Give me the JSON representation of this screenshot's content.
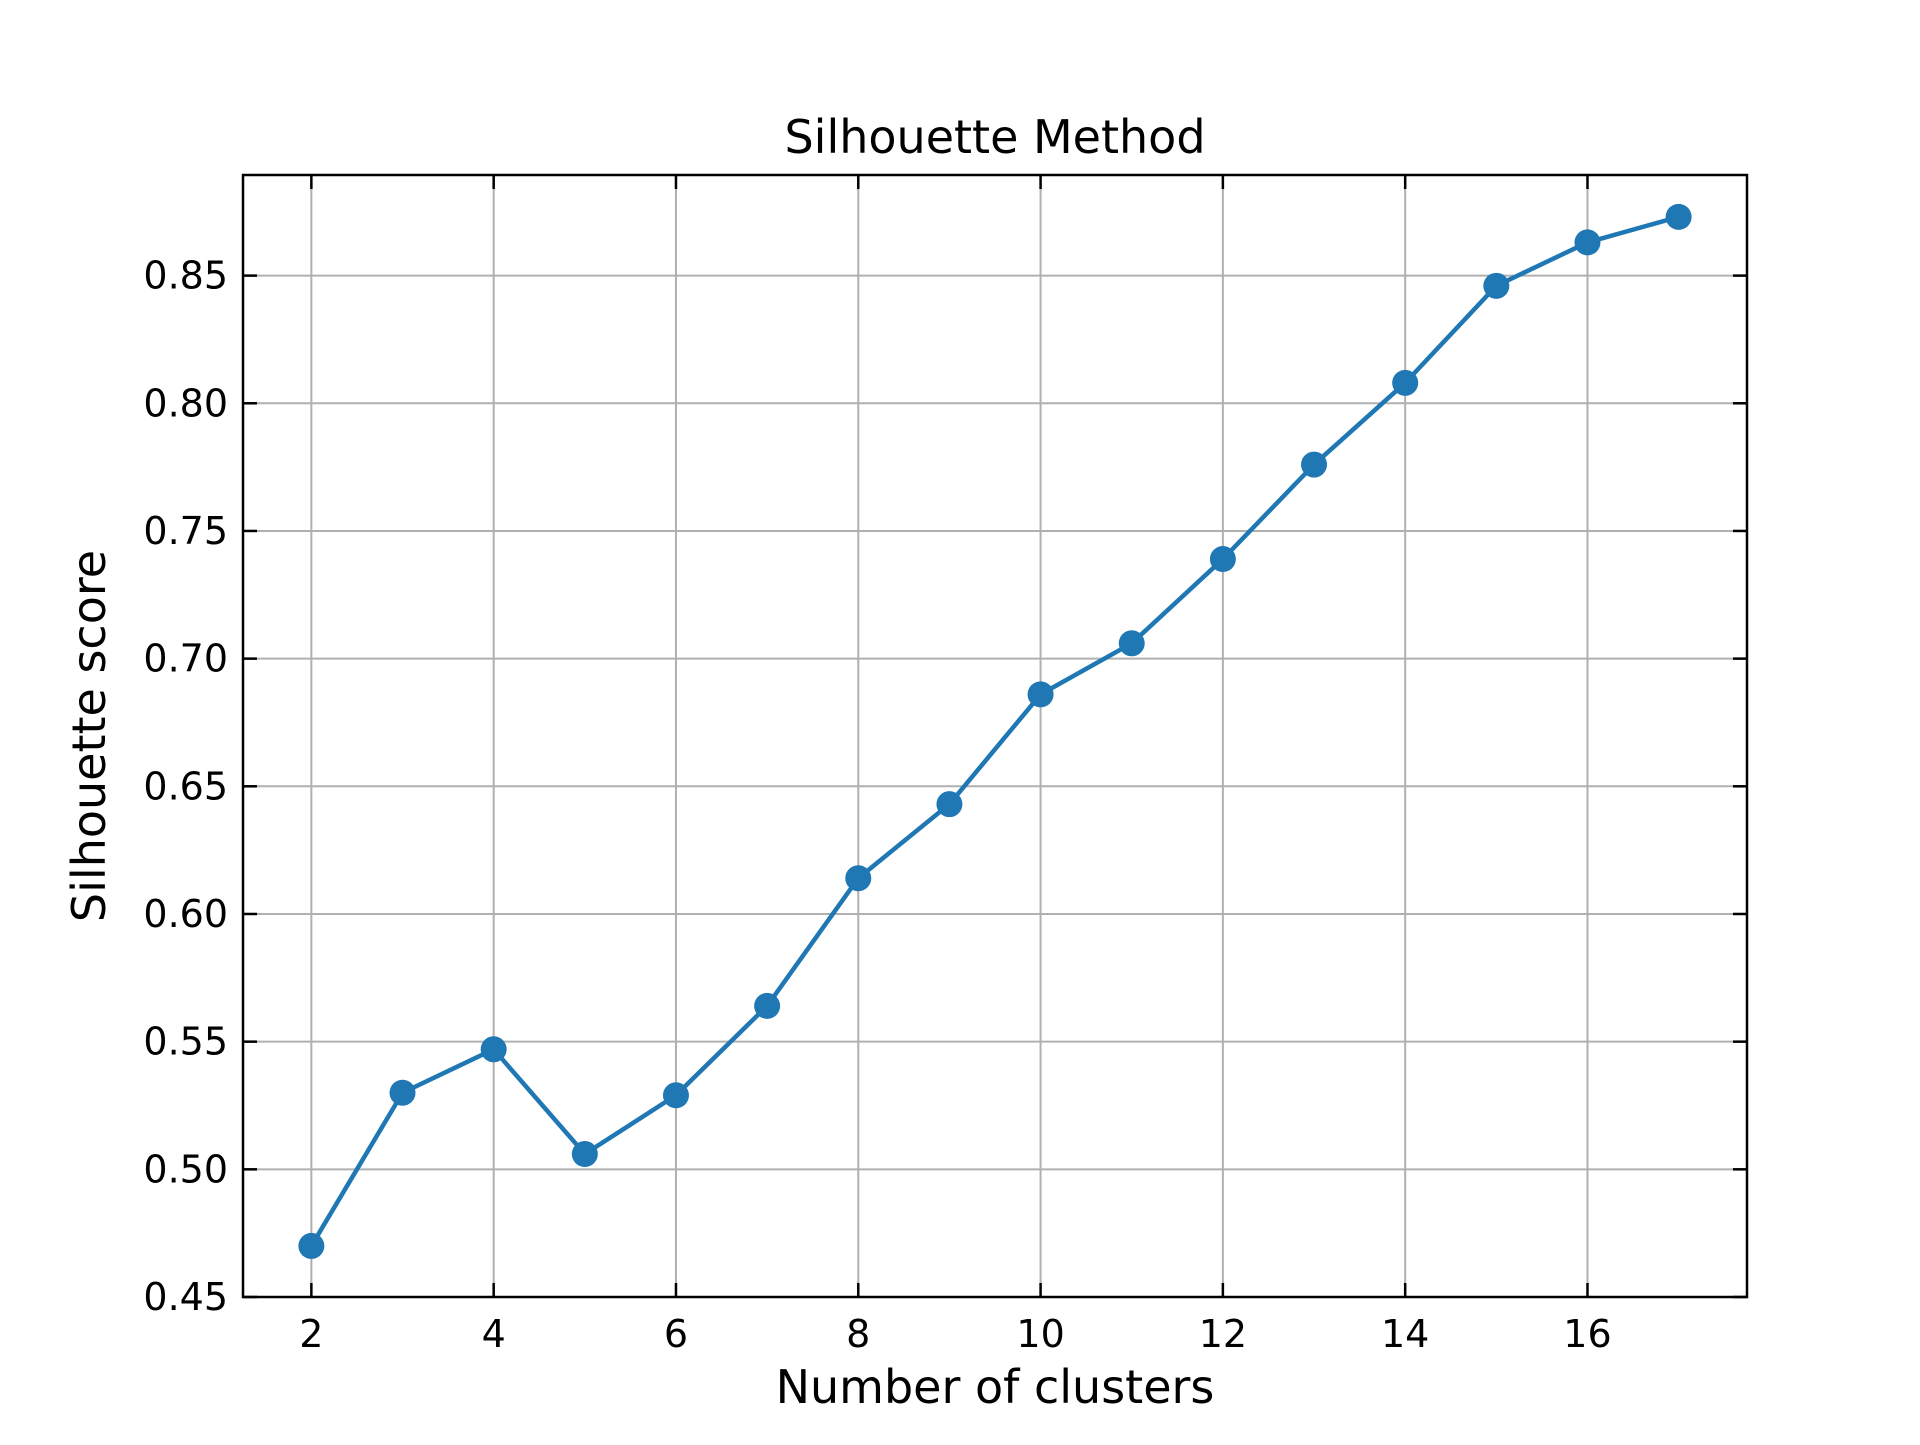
{
  "chart_data": {
    "type": "line",
    "title": "Silhouette Method",
    "xlabel": "Number of clusters",
    "ylabel": "Silhouette score",
    "xlim": [
      1.25,
      17.75
    ],
    "ylim": [
      0.45,
      0.8894
    ],
    "xticks": [
      2,
      4,
      6,
      8,
      10,
      12,
      14,
      16
    ],
    "yticks": [
      0.45,
      0.5,
      0.55,
      0.6,
      0.65,
      0.7,
      0.75,
      0.8,
      0.85
    ],
    "xtick_labels": [
      "2",
      "4",
      "6",
      "8",
      "10",
      "12",
      "14",
      "16"
    ],
    "ytick_labels": [
      "0.45",
      "0.50",
      "0.55",
      "0.60",
      "0.65",
      "0.70",
      "0.75",
      "0.80",
      "0.85"
    ],
    "grid": true,
    "x": [
      2,
      3,
      4,
      5,
      6,
      7,
      8,
      9,
      10,
      11,
      12,
      13,
      14,
      15,
      16,
      17
    ],
    "series": [
      {
        "color": "#1f77b4",
        "values": [
          0.47,
          0.53,
          0.547,
          0.506,
          0.529,
          0.564,
          0.614,
          0.643,
          0.686,
          0.706,
          0.739,
          0.776,
          0.808,
          0.846,
          0.863,
          0.873
        ]
      }
    ]
  }
}
